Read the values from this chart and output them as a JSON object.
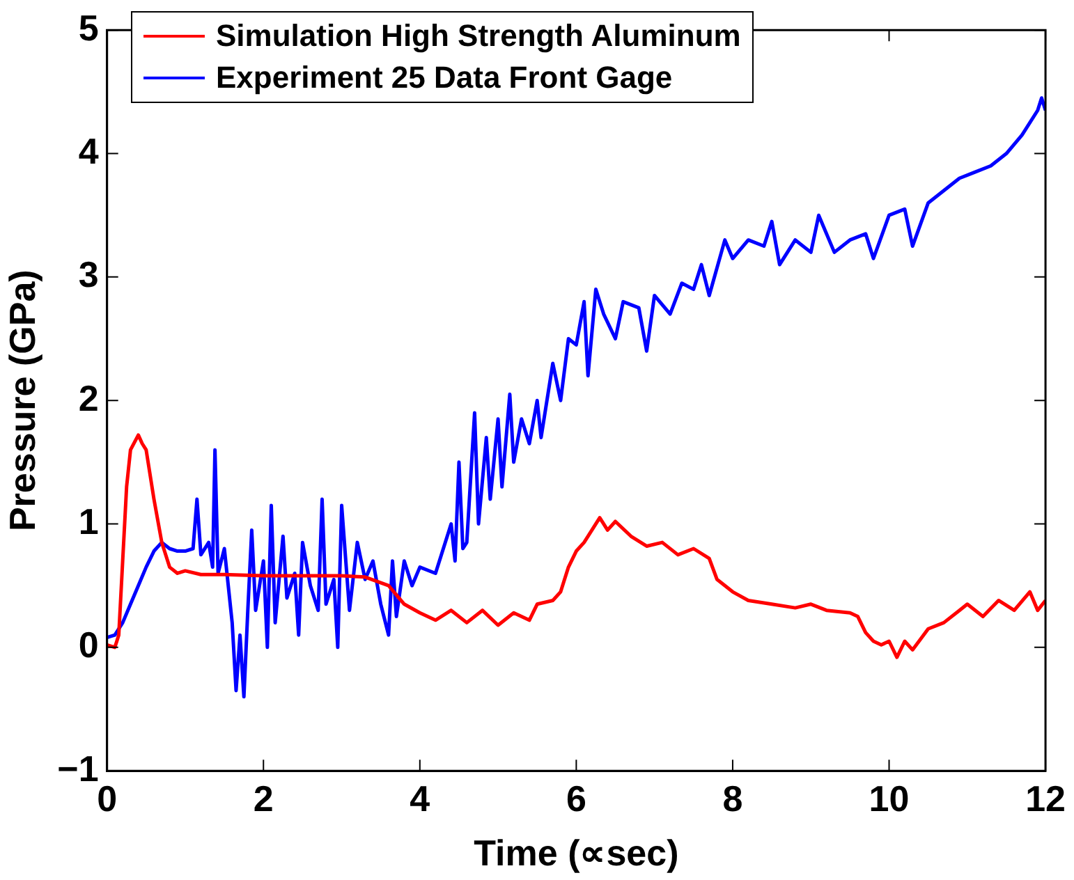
{
  "chart_data": {
    "type": "line",
    "xlabel": "Time (∝sec)",
    "ylabel": "Pressure (GPa)",
    "xlim": [
      0,
      12
    ],
    "ylim": [
      -1,
      5
    ],
    "xticks": [
      0,
      2,
      4,
      6,
      8,
      10,
      12
    ],
    "yticks": [
      -1,
      0,
      1,
      2,
      3,
      4,
      5
    ],
    "grid": false,
    "legend": "top",
    "marker": "none",
    "line_style": "solid",
    "series": [
      {
        "name": "Simulation High Strength Aluminum",
        "color": "#ff0000",
        "x": [
          0,
          0.1,
          0.15,
          0.2,
          0.25,
          0.3,
          0.4,
          0.45,
          0.5,
          0.6,
          0.7,
          0.8,
          0.9,
          1.0,
          1.2,
          1.5,
          2,
          2.5,
          3,
          3.3,
          3.6,
          3.8,
          4.0,
          4.2,
          4.4,
          4.6,
          4.8,
          5.0,
          5.2,
          5.4,
          5.5,
          5.7,
          5.8,
          5.9,
          6.0,
          6.1,
          6.2,
          6.3,
          6.4,
          6.5,
          6.7,
          6.9,
          7.1,
          7.3,
          7.5,
          7.7,
          7.8,
          8.0,
          8.2,
          8.5,
          8.8,
          9.0,
          9.2,
          9.5,
          9.6,
          9.7,
          9.8,
          9.9,
          10.0,
          10.1,
          10.2,
          10.3,
          10.5,
          10.7,
          10.9,
          11.0,
          11.2,
          11.4,
          11.6,
          11.8,
          11.9,
          12
        ],
        "values": [
          0.02,
          0.0,
          0.1,
          0.7,
          1.3,
          1.6,
          1.72,
          1.65,
          1.6,
          1.2,
          0.85,
          0.65,
          0.6,
          0.62,
          0.59,
          0.59,
          0.58,
          0.58,
          0.58,
          0.57,
          0.5,
          0.35,
          0.28,
          0.22,
          0.3,
          0.2,
          0.3,
          0.18,
          0.28,
          0.22,
          0.35,
          0.38,
          0.45,
          0.65,
          0.78,
          0.85,
          0.95,
          1.05,
          0.95,
          1.02,
          0.9,
          0.82,
          0.85,
          0.75,
          0.8,
          0.72,
          0.55,
          0.45,
          0.38,
          0.35,
          0.32,
          0.35,
          0.3,
          0.28,
          0.25,
          0.12,
          0.05,
          0.02,
          0.05,
          -0.08,
          0.05,
          -0.02,
          0.15,
          0.2,
          0.3,
          0.35,
          0.25,
          0.38,
          0.3,
          0.45,
          0.3,
          0.38
        ]
      },
      {
        "name": "Experiment 25 Data Front Gage",
        "color": "#0000ff",
        "x": [
          0,
          0.1,
          0.2,
          0.3,
          0.4,
          0.5,
          0.6,
          0.7,
          0.8,
          0.9,
          1.0,
          1.1,
          1.15,
          1.2,
          1.3,
          1.35,
          1.38,
          1.42,
          1.5,
          1.55,
          1.6,
          1.65,
          1.7,
          1.75,
          1.8,
          1.85,
          1.9,
          2.0,
          2.05,
          2.1,
          2.15,
          2.25,
          2.3,
          2.4,
          2.45,
          2.5,
          2.6,
          2.7,
          2.75,
          2.8,
          2.9,
          2.95,
          3.0,
          3.1,
          3.2,
          3.3,
          3.4,
          3.5,
          3.6,
          3.65,
          3.7,
          3.8,
          3.9,
          4.0,
          4.2,
          4.4,
          4.45,
          4.5,
          4.55,
          4.6,
          4.7,
          4.75,
          4.85,
          4.9,
          5.0,
          5.05,
          5.15,
          5.2,
          5.3,
          5.4,
          5.5,
          5.55,
          5.7,
          5.8,
          5.9,
          6.0,
          6.1,
          6.15,
          6.25,
          6.35,
          6.5,
          6.6,
          6.8,
          6.9,
          7.0,
          7.2,
          7.35,
          7.5,
          7.6,
          7.7,
          7.9,
          8.0,
          8.2,
          8.4,
          8.5,
          8.6,
          8.8,
          9.0,
          9.1,
          9.3,
          9.5,
          9.7,
          9.8,
          10.0,
          10.2,
          10.3,
          10.5,
          10.7,
          10.9,
          11.1,
          11.3,
          11.5,
          11.7,
          11.9,
          11.95,
          12
        ],
        "values": [
          0.08,
          0.1,
          0.2,
          0.35,
          0.5,
          0.65,
          0.78,
          0.85,
          0.8,
          0.78,
          0.78,
          0.8,
          1.2,
          0.75,
          0.85,
          0.65,
          1.6,
          0.6,
          0.8,
          0.5,
          0.2,
          -0.35,
          0.1,
          -0.4,
          0.3,
          0.95,
          0.3,
          0.7,
          0.0,
          1.15,
          0.2,
          0.9,
          0.4,
          0.6,
          0.1,
          0.85,
          0.5,
          0.3,
          1.2,
          0.35,
          0.55,
          0.0,
          1.15,
          0.3,
          0.85,
          0.55,
          0.7,
          0.35,
          0.1,
          0.7,
          0.25,
          0.7,
          0.5,
          0.65,
          0.6,
          1.0,
          0.7,
          1.5,
          0.8,
          0.85,
          1.9,
          1.0,
          1.7,
          1.2,
          1.85,
          1.3,
          2.05,
          1.5,
          1.85,
          1.65,
          2.0,
          1.7,
          2.3,
          2.0,
          2.5,
          2.45,
          2.8,
          2.2,
          2.9,
          2.7,
          2.5,
          2.8,
          2.75,
          2.4,
          2.85,
          2.7,
          2.95,
          2.9,
          3.1,
          2.85,
          3.3,
          3.15,
          3.3,
          3.25,
          3.45,
          3.1,
          3.3,
          3.2,
          3.5,
          3.2,
          3.3,
          3.35,
          3.15,
          3.5,
          3.55,
          3.25,
          3.6,
          3.7,
          3.8,
          3.85,
          3.9,
          4.0,
          4.15,
          4.35,
          4.45,
          4.35
        ]
      }
    ]
  }
}
